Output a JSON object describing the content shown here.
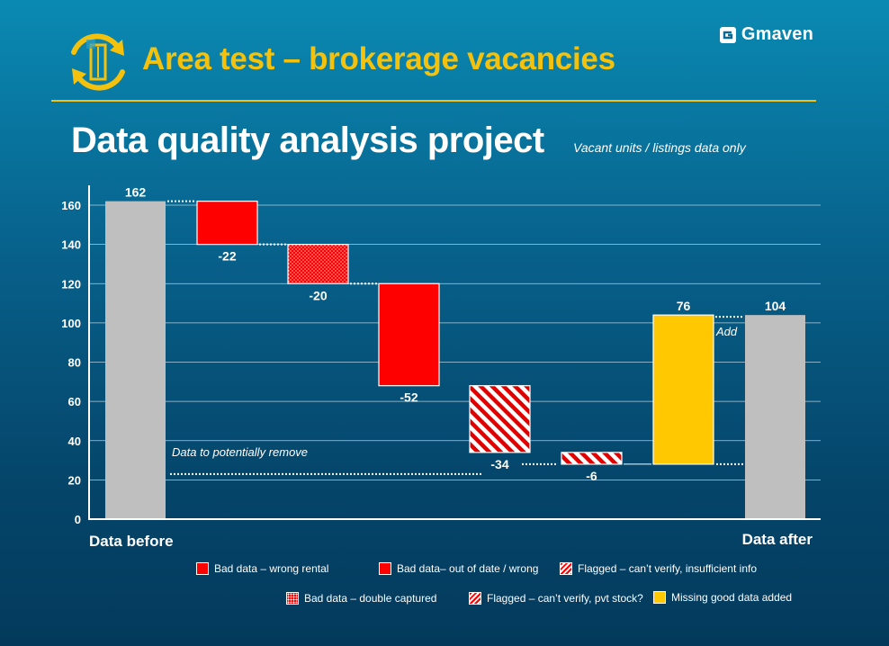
{
  "header": {
    "title": "Area test – brokerage vacancies",
    "brand": "Gmaven"
  },
  "main": {
    "heading": "Data quality analysis project",
    "subheading": "Vacant units / listings data only"
  },
  "colors": {
    "accent": "#f4c20d",
    "bad_data_red": "#ff0000",
    "total_bar_gray": "#bfbfbf",
    "added_yellow": "#ffc800"
  },
  "chart_data": {
    "type": "waterfall",
    "ylim": [
      0,
      170
    ],
    "yticks": [
      0,
      20,
      40,
      60,
      80,
      100,
      120,
      140,
      160
    ],
    "grid": true,
    "category_labels": [
      "Data before",
      "Data after"
    ],
    "steps": [
      {
        "kind": "total",
        "value": 162,
        "label": "162",
        "fill": "gray"
      },
      {
        "kind": "delta",
        "value": -22,
        "label": "-22",
        "fill": "solid-red",
        "legend": "Bad data – wrong rental"
      },
      {
        "kind": "delta",
        "value": -20,
        "label": "-20",
        "fill": "dotted-red",
        "legend": "Bad data – double captured"
      },
      {
        "kind": "delta",
        "value": -52,
        "label": "-52",
        "fill": "solid-red",
        "legend": "Bad data– out of date / wrong"
      },
      {
        "kind": "delta",
        "value": -34,
        "label": "-34",
        "fill": "hatched-red",
        "legend": "Flagged – can’t verify,  pvt stock?"
      },
      {
        "kind": "delta",
        "value": -6,
        "label": "-6",
        "fill": "hatched-red",
        "legend": "Flagged – can’t verify,  insufficient info"
      },
      {
        "kind": "delta",
        "value": 76,
        "label": "76",
        "fill": "yellow",
        "legend": "Missing good data added"
      },
      {
        "kind": "total",
        "value": 104,
        "label": "104",
        "fill": "gray"
      }
    ],
    "annotations": {
      "remove_text": "Data to potentially remove",
      "remove_level": 28,
      "add_text": "Add"
    }
  },
  "legend": [
    {
      "label": "Bad data – wrong rental",
      "swatch": "solid"
    },
    {
      "label": "Bad data– out of date / wrong",
      "swatch": "solid"
    },
    {
      "label": "Flagged – can’t verify,  insufficient info",
      "swatch": "hatch"
    },
    {
      "label": "Bad data – double captured",
      "swatch": "dots"
    },
    {
      "label": "Flagged – can’t verify,  pvt stock?",
      "swatch": "hatch"
    },
    {
      "label": "Missing good data added",
      "swatch": "yellow"
    }
  ]
}
